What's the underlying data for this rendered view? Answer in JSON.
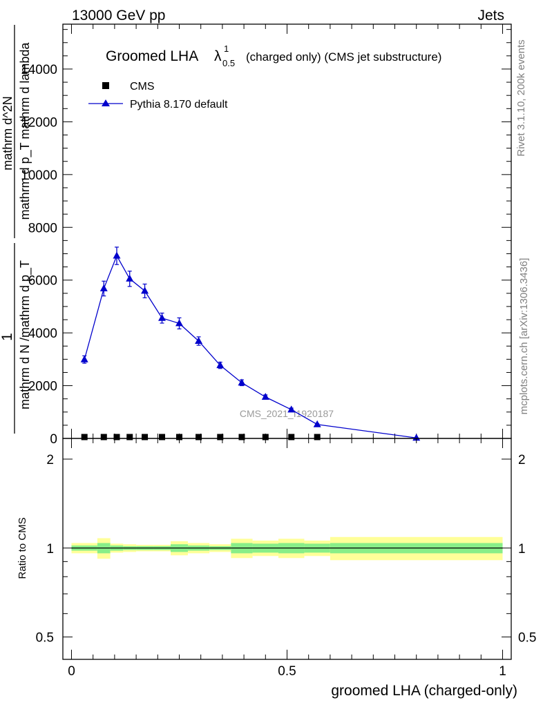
{
  "header": {
    "energy": "13000 GeV pp",
    "process": "Jets"
  },
  "side_labels": {
    "rivet": "Rivet 3.1.10,  200k events",
    "mcplots": "mcplots.cern.ch [arXiv:1306.3436]"
  },
  "ylabel_lines": {
    "one": "1",
    "den": "mathrm d N /mathrm d p_T",
    "num_a": "mathrm d^2N",
    "num_b": "mathrm d p_T mathrm d lambda"
  },
  "plot_title": {
    "main": "Groomed LHA",
    "lambda": "λ",
    "sup": "1",
    "sub": "0.5",
    "rest": "(charged only) (CMS jet substructure)"
  },
  "watermark": "CMS_2021_I1920187",
  "legend": [
    {
      "name": "CMS",
      "marker": "square",
      "color": "#000000"
    },
    {
      "name": "Pythia 8.170 default",
      "marker": "triangle",
      "color": "#0000cc"
    }
  ],
  "ratio_ylabel": "Ratio to CMS",
  "xlabel": "groomed LHA (charged-only)",
  "chart_data": [
    {
      "type": "line",
      "panel": "main",
      "xlim": [
        -0.02,
        1.02
      ],
      "ylim": [
        0,
        15700
      ],
      "x_ticks": [
        0,
        0.5,
        1
      ],
      "y_ticks": [
        0,
        2000,
        4000,
        6000,
        8000,
        10000,
        12000,
        14000
      ],
      "y_tick_labels": [
        "0",
        "2000",
        "4000",
        "6000",
        "8000",
        "10000",
        "12000",
        "14000"
      ],
      "series": [
        {
          "name": "CMS",
          "x": [
            0.03,
            0.075,
            0.105,
            0.135,
            0.17,
            0.21,
            0.25,
            0.295,
            0.345,
            0.395,
            0.45,
            0.51,
            0.57
          ],
          "y": [
            0,
            0,
            0,
            0,
            0,
            0,
            0,
            0,
            0,
            0,
            0,
            0,
            0
          ]
        },
        {
          "name": "Pythia 8.170 default",
          "x": [
            0.03,
            0.075,
            0.105,
            0.135,
            0.17,
            0.21,
            0.25,
            0.295,
            0.345,
            0.395,
            0.45,
            0.51,
            0.57,
            0.8
          ],
          "y": [
            2990,
            5680,
            6920,
            6050,
            5590,
            4560,
            4360,
            3690,
            2770,
            2110,
            1570,
            1090,
            530,
            20
          ],
          "yerr": [
            140,
            280,
            330,
            290,
            260,
            190,
            210,
            160,
            120,
            110,
            80,
            60,
            30,
            10
          ]
        }
      ]
    },
    {
      "type": "area",
      "panel": "ratio",
      "xlim": [
        -0.02,
        1.02
      ],
      "ylim": [
        0.42,
        2.35
      ],
      "log_scale": true,
      "y_ticks": [
        0.5,
        1,
        2
      ],
      "y_tick_labels": [
        "0.5",
        "1",
        "2"
      ],
      "x_tick_labels": [
        "0",
        "0.5",
        "1"
      ],
      "reference": 1,
      "bands": {
        "bin_edges": [
          0,
          0.06,
          0.09,
          0.12,
          0.15,
          0.19,
          0.23,
          0.27,
          0.32,
          0.37,
          0.42,
          0.48,
          0.54,
          0.6,
          1.0
        ],
        "inner": [
          0.02,
          0.04,
          0.02,
          0.015,
          0.015,
          0.015,
          0.03,
          0.02,
          0.015,
          0.04,
          0.035,
          0.04,
          0.035,
          0.04
        ],
        "outer": [
          0.04,
          0.08,
          0.035,
          0.03,
          0.025,
          0.025,
          0.055,
          0.04,
          0.03,
          0.075,
          0.06,
          0.075,
          0.06,
          0.09
        ]
      }
    }
  ]
}
